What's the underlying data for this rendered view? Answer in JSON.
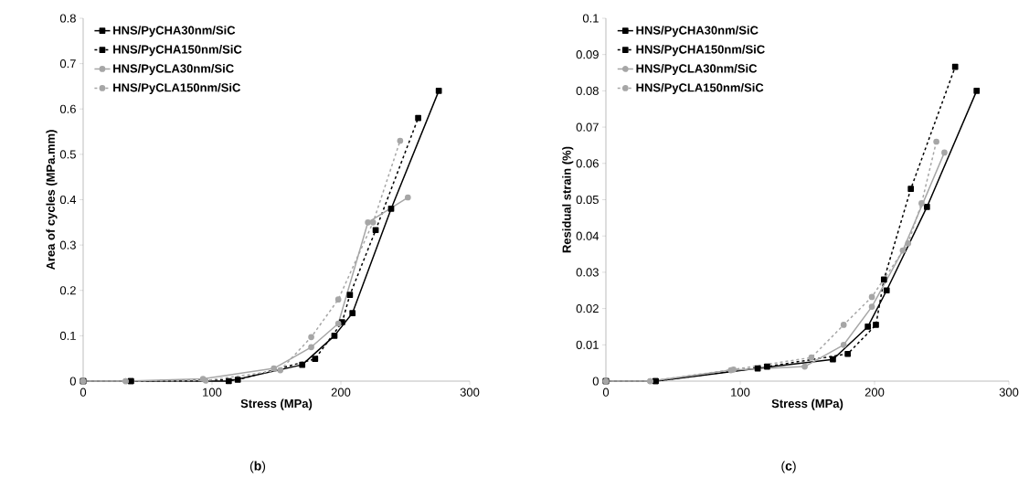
{
  "chart_data": [
    {
      "type": "line",
      "xlabel": "Stress (MPa)",
      "ylabel": "Area of cycles (MPa.mm)",
      "annotations": [
        "(**b**)"
      ],
      "xlim": [
        0,
        300
      ],
      "ylim": [
        0,
        0.8
      ],
      "xticks": [
        0,
        100,
        200,
        300
      ],
      "yticks": [
        0,
        0.1,
        0.2,
        0.3,
        0.4,
        0.5,
        0.6,
        0.7,
        0.8
      ],
      "grid": false,
      "legend": "top left",
      "series": [
        {
          "name": "HNS/PyCHA30nm/SiC",
          "color": "#000000",
          "marker": "square",
          "line_style": "solid",
          "x": [
            0,
            37,
            113,
            170,
            195,
            209,
            239,
            276
          ],
          "values": [
            0,
            0,
            0,
            0.036,
            0.1,
            0.15,
            0.38,
            0.64
          ]
        },
        {
          "name": "HNS/PyCHA150nm/SiC",
          "color": "#000000",
          "marker": "square",
          "line_style": "dashed",
          "x": [
            0,
            37,
            120,
            180,
            201,
            207,
            227,
            260
          ],
          "values": [
            0,
            0,
            0.003,
            0.049,
            0.13,
            0.19,
            0.333,
            0.58
          ]
        },
        {
          "name": "HNS/PyCLA30nm/SiC",
          "color": "#a6a6a6",
          "marker": "circle",
          "line_style": "solid",
          "x": [
            0,
            33,
            93,
            148,
            177,
            198,
            221,
            252
          ],
          "values": [
            0,
            0,
            0.005,
            0.028,
            0.075,
            0.127,
            0.35,
            0.405
          ]
        },
        {
          "name": "HNS/PyCLA150nm/SiC",
          "color": "#a6a6a6",
          "marker": "circle",
          "line_style": "dashed",
          "x": [
            0,
            33,
            95,
            153,
            177,
            198,
            225,
            246
          ],
          "values": [
            0,
            0,
            0.001,
            0.024,
            0.097,
            0.18,
            0.35,
            0.53
          ]
        }
      ]
    },
    {
      "type": "line",
      "xlabel": "Stress (MPa)",
      "ylabel": "Residual strain (%)",
      "annotations": [
        "(**c**)"
      ],
      "xlim": [
        0,
        300
      ],
      "ylim": [
        0,
        0.1
      ],
      "xticks": [
        0,
        100,
        200,
        300
      ],
      "yticks": [
        0,
        0.01,
        0.02,
        0.03,
        0.04,
        0.05,
        0.06,
        0.07,
        0.08,
        0.09,
        0.1
      ],
      "grid": false,
      "legend": "top left",
      "series": [
        {
          "name": "HNS/PyCHA30nm/SiC",
          "color": "#000000",
          "marker": "square",
          "line_style": "solid",
          "x": [
            0,
            37,
            113,
            169,
            195,
            209,
            239,
            276
          ],
          "values": [
            0,
            0,
            0.0035,
            0.006,
            0.015,
            0.025,
            0.048,
            0.08
          ]
        },
        {
          "name": "HNS/PyCHA150nm/SiC",
          "color": "#000000",
          "marker": "square",
          "line_style": "dashed",
          "x": [
            0,
            37,
            120,
            180,
            201,
            207,
            227,
            260
          ],
          "values": [
            0,
            0,
            0.004,
            0.0075,
            0.0155,
            0.028,
            0.053,
            0.0866
          ]
        },
        {
          "name": "HNS/PyCLA30nm/SiC",
          "color": "#a6a6a6",
          "marker": "circle",
          "line_style": "solid",
          "x": [
            0,
            33,
            93,
            148,
            177,
            198,
            221,
            252
          ],
          "values": [
            0,
            0,
            0.003,
            0.004,
            0.01,
            0.0205,
            0.036,
            0.063
          ]
        },
        {
          "name": "HNS/PyCLA150nm/SiC",
          "color": "#a6a6a6",
          "marker": "circle",
          "line_style": "dashed",
          "x": [
            0,
            33,
            95,
            153,
            177,
            198,
            225,
            235,
            246
          ],
          "values": [
            0,
            0,
            0.0032,
            0.0065,
            0.0155,
            0.0232,
            0.038,
            0.049,
            0.066
          ]
        }
      ]
    }
  ]
}
